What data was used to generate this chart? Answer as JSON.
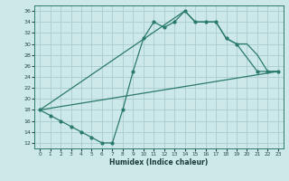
{
  "title": "",
  "xlabel": "Humidex (Indice chaleur)",
  "bg_color": "#cce8e8",
  "grid_color": "#aacccc",
  "line_color": "#2a7a6a",
  "xlim": [
    -0.5,
    23.5
  ],
  "ylim": [
    11,
    37
  ],
  "xticks": [
    0,
    1,
    2,
    3,
    4,
    5,
    6,
    7,
    8,
    9,
    10,
    11,
    12,
    13,
    14,
    15,
    16,
    17,
    18,
    19,
    20,
    21,
    22,
    23
  ],
  "yticks": [
    12,
    14,
    16,
    18,
    20,
    22,
    24,
    26,
    28,
    30,
    32,
    34,
    36
  ],
  "series1_x": [
    0,
    1,
    2,
    3,
    4,
    5,
    6,
    7,
    8,
    9,
    10,
    11,
    12,
    13,
    14,
    15,
    16,
    17,
    18,
    19,
    21,
    22,
    23
  ],
  "series1_y": [
    18,
    17,
    16,
    15,
    14,
    13,
    12,
    12,
    18,
    25,
    31,
    34,
    33,
    34,
    36,
    34,
    34,
    34,
    31,
    30,
    25,
    25,
    25
  ],
  "series2_x": [
    0,
    14,
    15,
    16,
    17,
    18,
    19,
    20,
    21,
    22,
    23
  ],
  "series2_y": [
    18,
    36,
    34,
    34,
    34,
    31,
    30,
    30,
    28,
    25,
    25
  ],
  "series3_x": [
    0,
    23
  ],
  "series3_y": [
    18,
    25
  ]
}
